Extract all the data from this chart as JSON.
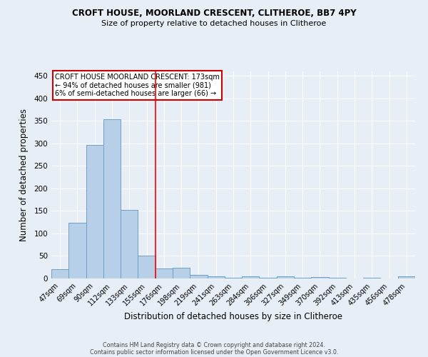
{
  "title": "CROFT HOUSE, MOORLAND CRESCENT, CLITHEROE, BB7 4PY",
  "subtitle": "Size of property relative to detached houses in Clitheroe",
  "xlabel": "Distribution of detached houses by size in Clitheroe",
  "ylabel": "Number of detached properties",
  "footnote1": "Contains HM Land Registry data © Crown copyright and database right 2024.",
  "footnote2": "Contains public sector information licensed under the Open Government Licence v3.0.",
  "bar_labels": [
    "47sqm",
    "69sqm",
    "90sqm",
    "112sqm",
    "133sqm",
    "155sqm",
    "176sqm",
    "198sqm",
    "219sqm",
    "241sqm",
    "263sqm",
    "284sqm",
    "306sqm",
    "327sqm",
    "349sqm",
    "370sqm",
    "392sqm",
    "413sqm",
    "435sqm",
    "456sqm",
    "478sqm"
  ],
  "bar_values": [
    20,
    123,
    297,
    353,
    152,
    50,
    23,
    24,
    8,
    4,
    2,
    5,
    1,
    4,
    1,
    3,
    1,
    0,
    1,
    0,
    4
  ],
  "bar_color": "#b8cfe8",
  "bar_edge_color": "#6da0cc",
  "property_line_x": 6,
  "property_line_label": "CROFT HOUSE MOORLAND CRESCENT: 173sqm",
  "annotation_line1": "← 94% of detached houses are smaller (981)",
  "annotation_line2": "6% of semi-detached houses are larger (66) →",
  "ylim": [
    0,
    460
  ],
  "yticks": [
    0,
    50,
    100,
    150,
    200,
    250,
    300,
    350,
    400,
    450
  ],
  "bg_color": "#e8eef5",
  "grid_color": "#ffffff",
  "annotation_box_color": "#ffffff",
  "annotation_box_edge": "#cc0000"
}
